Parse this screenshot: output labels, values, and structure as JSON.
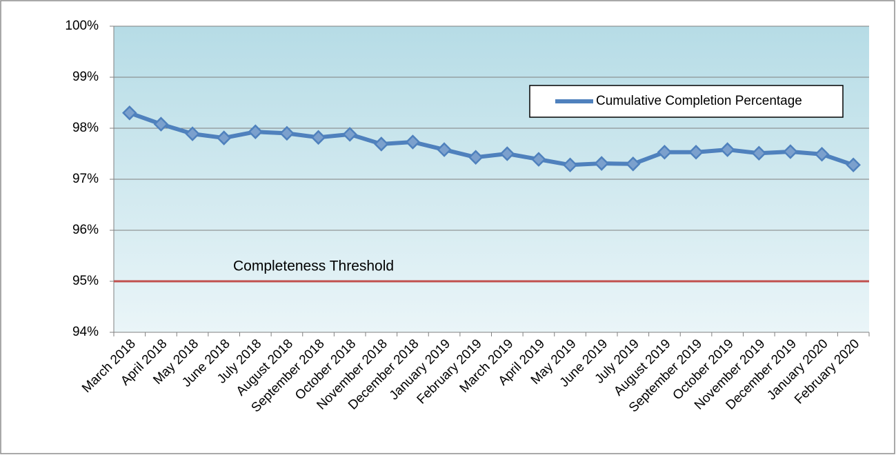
{
  "chart_data": {
    "type": "line",
    "categories": [
      "March 2018",
      "April 2018",
      "May 2018",
      "June 2018",
      "July 2018",
      "August 2018",
      "September 2018",
      "October 2018",
      "November 2018",
      "December 2018",
      "January 2019",
      "February 2019",
      "March 2019",
      "April 2019",
      "May 2019",
      "June 2019",
      "July 2019",
      "August 2019",
      "September 2019",
      "October 2019",
      "November 2019",
      "December 2019",
      "January 2020",
      "February 2020"
    ],
    "series": [
      {
        "name": "Cumulative Completion Percentage",
        "color": "#4f81bd",
        "values": [
          98.3,
          98.08,
          97.89,
          97.81,
          97.93,
          97.9,
          97.82,
          97.88,
          97.69,
          97.73,
          97.58,
          97.43,
          97.5,
          97.39,
          97.28,
          97.31,
          97.3,
          97.53,
          97.53,
          97.58,
          97.51,
          97.54,
          97.49,
          97.28
        ]
      }
    ],
    "ylim": [
      94,
      100
    ],
    "yticks": [
      {
        "value": 94,
        "label": "94%"
      },
      {
        "value": 95,
        "label": "95%"
      },
      {
        "value": 96,
        "label": "96%"
      },
      {
        "value": 97,
        "label": "97%"
      },
      {
        "value": 98,
        "label": "98%"
      },
      {
        "value": 99,
        "label": "99%"
      },
      {
        "value": 100,
        "label": "100%"
      }
    ],
    "grid": true,
    "threshold": {
      "value": 95,
      "label": "Completeness Threshold",
      "color": "#c0504d"
    },
    "legend": "upper right"
  }
}
